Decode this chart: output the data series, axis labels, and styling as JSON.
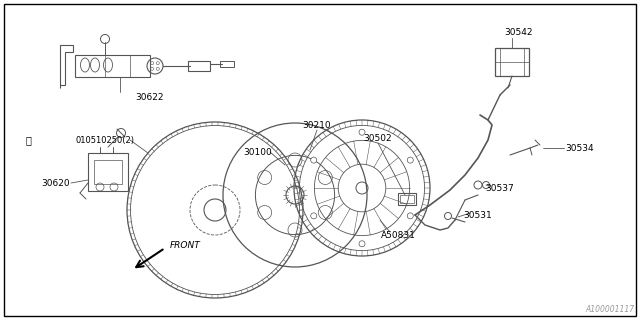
{
  "background_color": "#ffffff",
  "border_color": "#000000",
  "line_color": "#555555",
  "text_color": "#000000",
  "watermark": "A100001117",
  "fig_w": 6.4,
  "fig_h": 3.2,
  "dpi": 100
}
